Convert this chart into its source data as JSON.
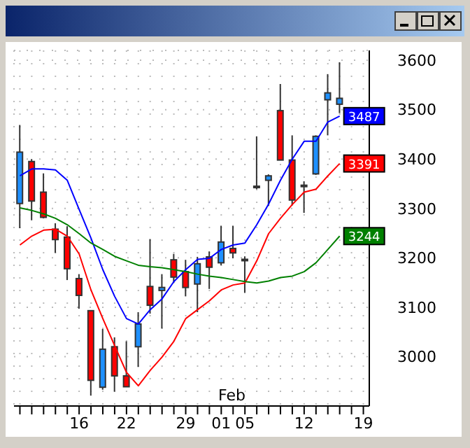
{
  "chart_data": {
    "type": "candlestick",
    "categories": [
      null,
      null,
      null,
      null,
      null,
      "16",
      null,
      null,
      null,
      "22",
      null,
      null,
      null,
      null,
      "29",
      null,
      null,
      "01",
      null,
      "05",
      null,
      null,
      null,
      null,
      "12",
      null,
      null,
      null,
      null,
      "19"
    ],
    "ohlc": [
      [
        3310,
        3469,
        3260,
        3414
      ],
      [
        3395,
        3400,
        3276,
        3315
      ],
      [
        3333,
        3371,
        3280,
        3282
      ],
      [
        3258,
        3270,
        3210,
        3237
      ],
      [
        3242,
        3264,
        3155,
        3178
      ],
      [
        3158,
        3167,
        3097,
        3124
      ],
      [
        3093,
        3093,
        2921,
        2952
      ],
      [
        2938,
        3056,
        2933,
        3015
      ],
      [
        3020,
        3039,
        2929,
        2961
      ],
      [
        2961,
        3031,
        2939,
        2939
      ],
      [
        3020,
        3090,
        2979,
        3066
      ],
      [
        3142,
        3238,
        3087,
        3104
      ],
      [
        3134,
        3167,
        3057,
        3140
      ],
      [
        3196,
        3208,
        3149,
        3161
      ],
      [
        3172,
        3196,
        3122,
        3140
      ],
      [
        3147,
        3202,
        3090,
        3188
      ],
      [
        3202,
        3213,
        3137,
        3181
      ],
      [
        3190,
        3265,
        3185,
        3232
      ],
      [
        3219,
        3265,
        3199,
        3210
      ],
      [
        3197,
        3203,
        3129,
        3196
      ],
      [
        3344,
        3446,
        3339,
        3345
      ],
      [
        3357,
        3369,
        3305,
        3366
      ],
      [
        3498,
        3552,
        3398,
        3398
      ],
      [
        3398,
        3448,
        3306,
        3317
      ],
      [
        3347,
        3355,
        3291,
        3346
      ],
      [
        3370,
        3448,
        3368,
        3446
      ],
      [
        3520,
        3572,
        3448,
        3534
      ],
      [
        3511,
        3596,
        3493,
        3523
      ],
      null,
      null
    ],
    "colors": [
      "#1e90ff",
      "#ff0000",
      "#ff0000",
      "#ff0000",
      "#ff0000",
      "#ff0000",
      "#ff0000",
      "#1e90ff",
      "#ff0000",
      "#ff0000",
      "#1e90ff",
      "#ff0000",
      "#1e90ff",
      "#ff0000",
      "#ff0000",
      "#1e90ff",
      "#ff0000",
      "#1e90ff",
      "#ff0000",
      "#ff0000",
      "#1e90ff",
      "#1e90ff",
      "#ff0000",
      "#ff0000",
      "#ff0000",
      "#1e90ff",
      "#1e90ff",
      "#1e90ff",
      null,
      null
    ],
    "series": [
      {
        "type": "line",
        "color": "#0000ff",
        "values": [
          3366,
          3380,
          3380,
          3378,
          3357,
          3298,
          3240,
          3176,
          3122,
          3077,
          3066,
          3095,
          3117,
          3152,
          3176,
          3197,
          3199,
          3217,
          3226,
          3230,
          3267,
          3309,
          3357,
          3400,
          3436,
          3436,
          3475,
          3487,
          null,
          null
        ],
        "value_labels": [
          null,
          null,
          null,
          null,
          null,
          null,
          null,
          null,
          null,
          null,
          null,
          null,
          null,
          null,
          null,
          null,
          null,
          null,
          null,
          null,
          null,
          null,
          null,
          null,
          null,
          null,
          null,
          "3487",
          null,
          null
        ]
      },
      {
        "type": "line",
        "color": "#ff0000",
        "values": [
          3226,
          3244,
          3256,
          3258,
          3244,
          3208,
          3135,
          3077,
          3022,
          2968,
          2941,
          2972,
          2999,
          3031,
          3077,
          3095,
          3113,
          3135,
          3145,
          3149,
          3194,
          3249,
          3280,
          3308,
          3333,
          3339,
          3366,
          3391,
          null,
          null
        ],
        "value_labels": [
          null,
          null,
          null,
          null,
          null,
          null,
          null,
          null,
          null,
          null,
          null,
          null,
          null,
          null,
          null,
          null,
          null,
          null,
          null,
          null,
          null,
          null,
          null,
          null,
          null,
          null,
          null,
          "3391",
          null,
          null
        ]
      },
      {
        "type": "line",
        "color": "#008000",
        "values": [
          3301,
          3296,
          3289,
          3280,
          3267,
          3249,
          3230,
          3217,
          3203,
          3194,
          3185,
          3182,
          3180,
          3176,
          3172,
          3167,
          3163,
          3160,
          3156,
          3152,
          3149,
          3153,
          3160,
          3163,
          3172,
          3190,
          3217,
          3244,
          null,
          null
        ],
        "value_labels": [
          null,
          null,
          null,
          null,
          null,
          null,
          null,
          null,
          null,
          null,
          null,
          null,
          null,
          null,
          null,
          null,
          null,
          null,
          null,
          null,
          null,
          null,
          null,
          null,
          null,
          null,
          null,
          "3244",
          null,
          null
        ]
      }
    ],
    "ylim": [
      2900,
      3620
    ],
    "yticks": [
      3000,
      3100,
      3200,
      3300,
      3400,
      3500,
      3600
    ],
    "grid": true,
    "annotations": [
      "Feb"
    ]
  }
}
